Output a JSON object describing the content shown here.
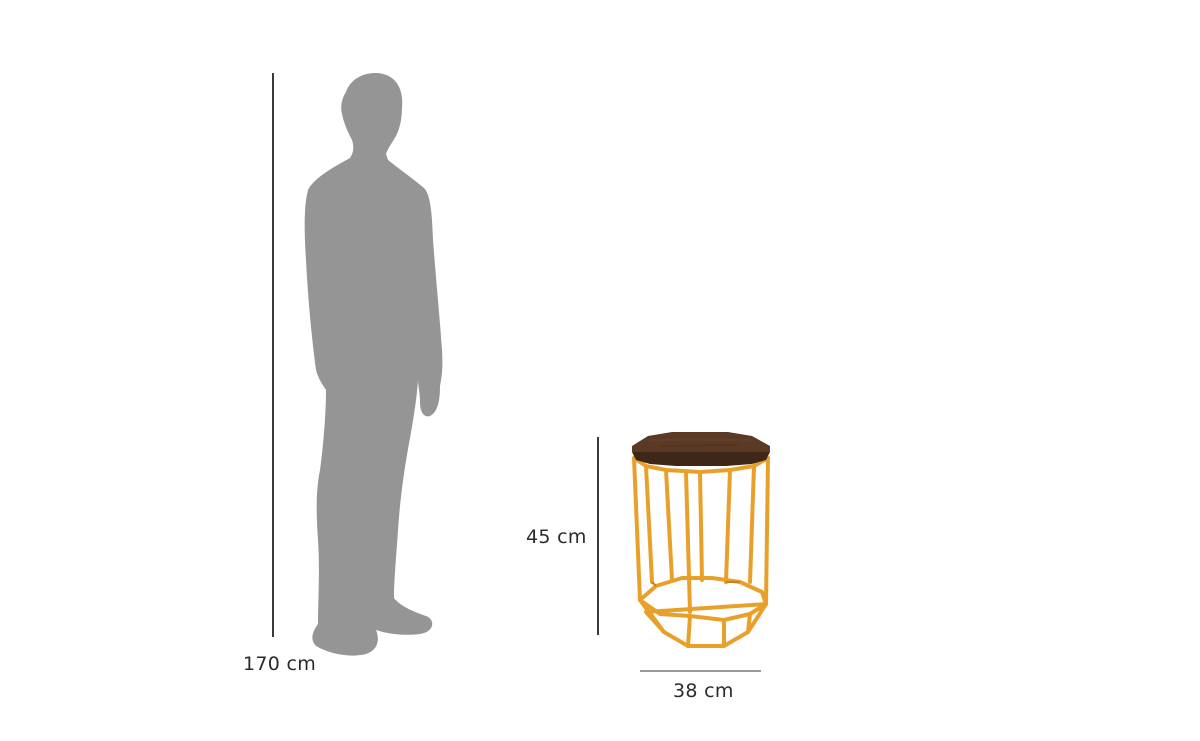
{
  "dimensions": {
    "person_height": "170 cm",
    "table_height": "45 cm",
    "table_width": "38 cm"
  },
  "colors": {
    "silhouette": "#959595",
    "frame": "#e9a02a",
    "frame_shadow": "#c7821b",
    "tabletop": "#5a3a24",
    "tabletop_edge": "#3e2717",
    "dimension_line": "#3a3a3a"
  },
  "icons": [
    "person-silhouette-icon",
    "side-table-icon"
  ]
}
